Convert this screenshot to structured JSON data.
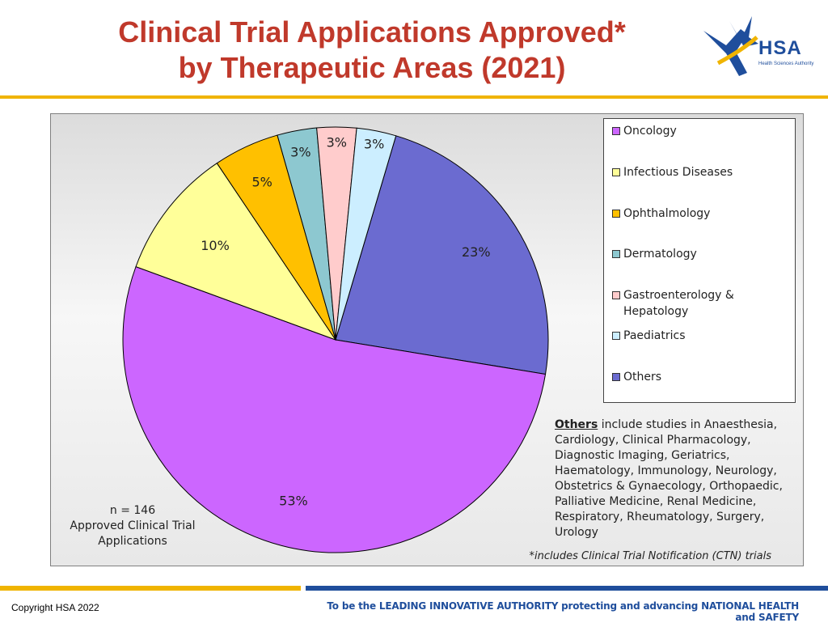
{
  "header": {
    "title_line1": "Clinical Trial Applications Approved*",
    "title_line2": "by Therapeutic Areas (2021)",
    "logo_text": "HSA",
    "logo_subtext": "Health Sciences Authority"
  },
  "chart_data": {
    "type": "pie",
    "title": "Clinical Trial Applications Approved* by Therapeutic Areas (2021)",
    "categories": [
      "Oncology",
      "Infectious Diseases",
      "Ophthalmology",
      "Dermatology",
      "Gastroenterology & Hepatology",
      "Paediatrics",
      "Others"
    ],
    "values": [
      53,
      10,
      5,
      3,
      3,
      3,
      23
    ],
    "value_labels": [
      "53%",
      "10%",
      "5%",
      "3%",
      "3%",
      "3%",
      "23%"
    ],
    "colors": [
      "#cc66ff",
      "#ffff99",
      "#ffc000",
      "#8dc8d0",
      "#ffcccc",
      "#cceeff",
      "#6b6bd0"
    ],
    "legend_placement": "right"
  },
  "notes": {
    "n_line1": "n = 146",
    "n_line2": "Approved Clinical Trial",
    "n_line3": "Applications",
    "others_bold": "Others",
    "others_text": " include studies in Anaesthesia, Cardiology, Clinical Pharmacology, Diagnostic Imaging, Geriatrics, Haematology, Immunology, Neurology, Obstetrics & Gynaecology, Orthopaedic, Palliative Medicine, Renal Medicine, Respiratory, Rheumatology, Surgery, Urology",
    "footnote": "*includes Clinical Trial Notification (CTN) trials"
  },
  "footer": {
    "copyright": "Copyright HSA 2022",
    "tagline": "To be the LEADING INNOVATIVE AUTHORITY protecting and advancing NATIONAL HEALTH and SAFETY"
  },
  "theme": {
    "title_color": "#c0392b",
    "gold": "#f0b400",
    "blue": "#1f4e9c"
  }
}
